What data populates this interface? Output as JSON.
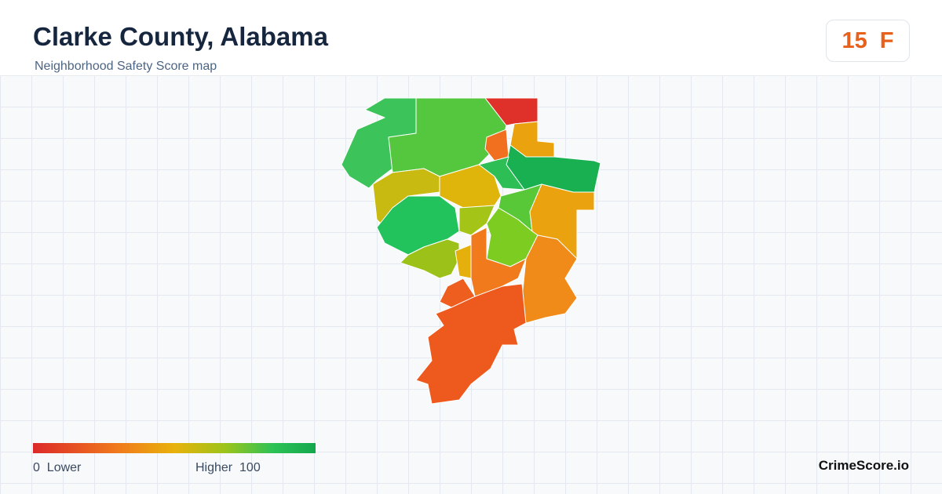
{
  "header": {
    "title": "Clarke County, Alabama",
    "subtitle": "Neighborhood Safety Score map"
  },
  "score": {
    "value": 15,
    "grade": "F"
  },
  "legend": {
    "min": 0,
    "min_label": "Lower",
    "max_label": "Higher",
    "max": 100
  },
  "brand": "CrimeScore.io"
}
